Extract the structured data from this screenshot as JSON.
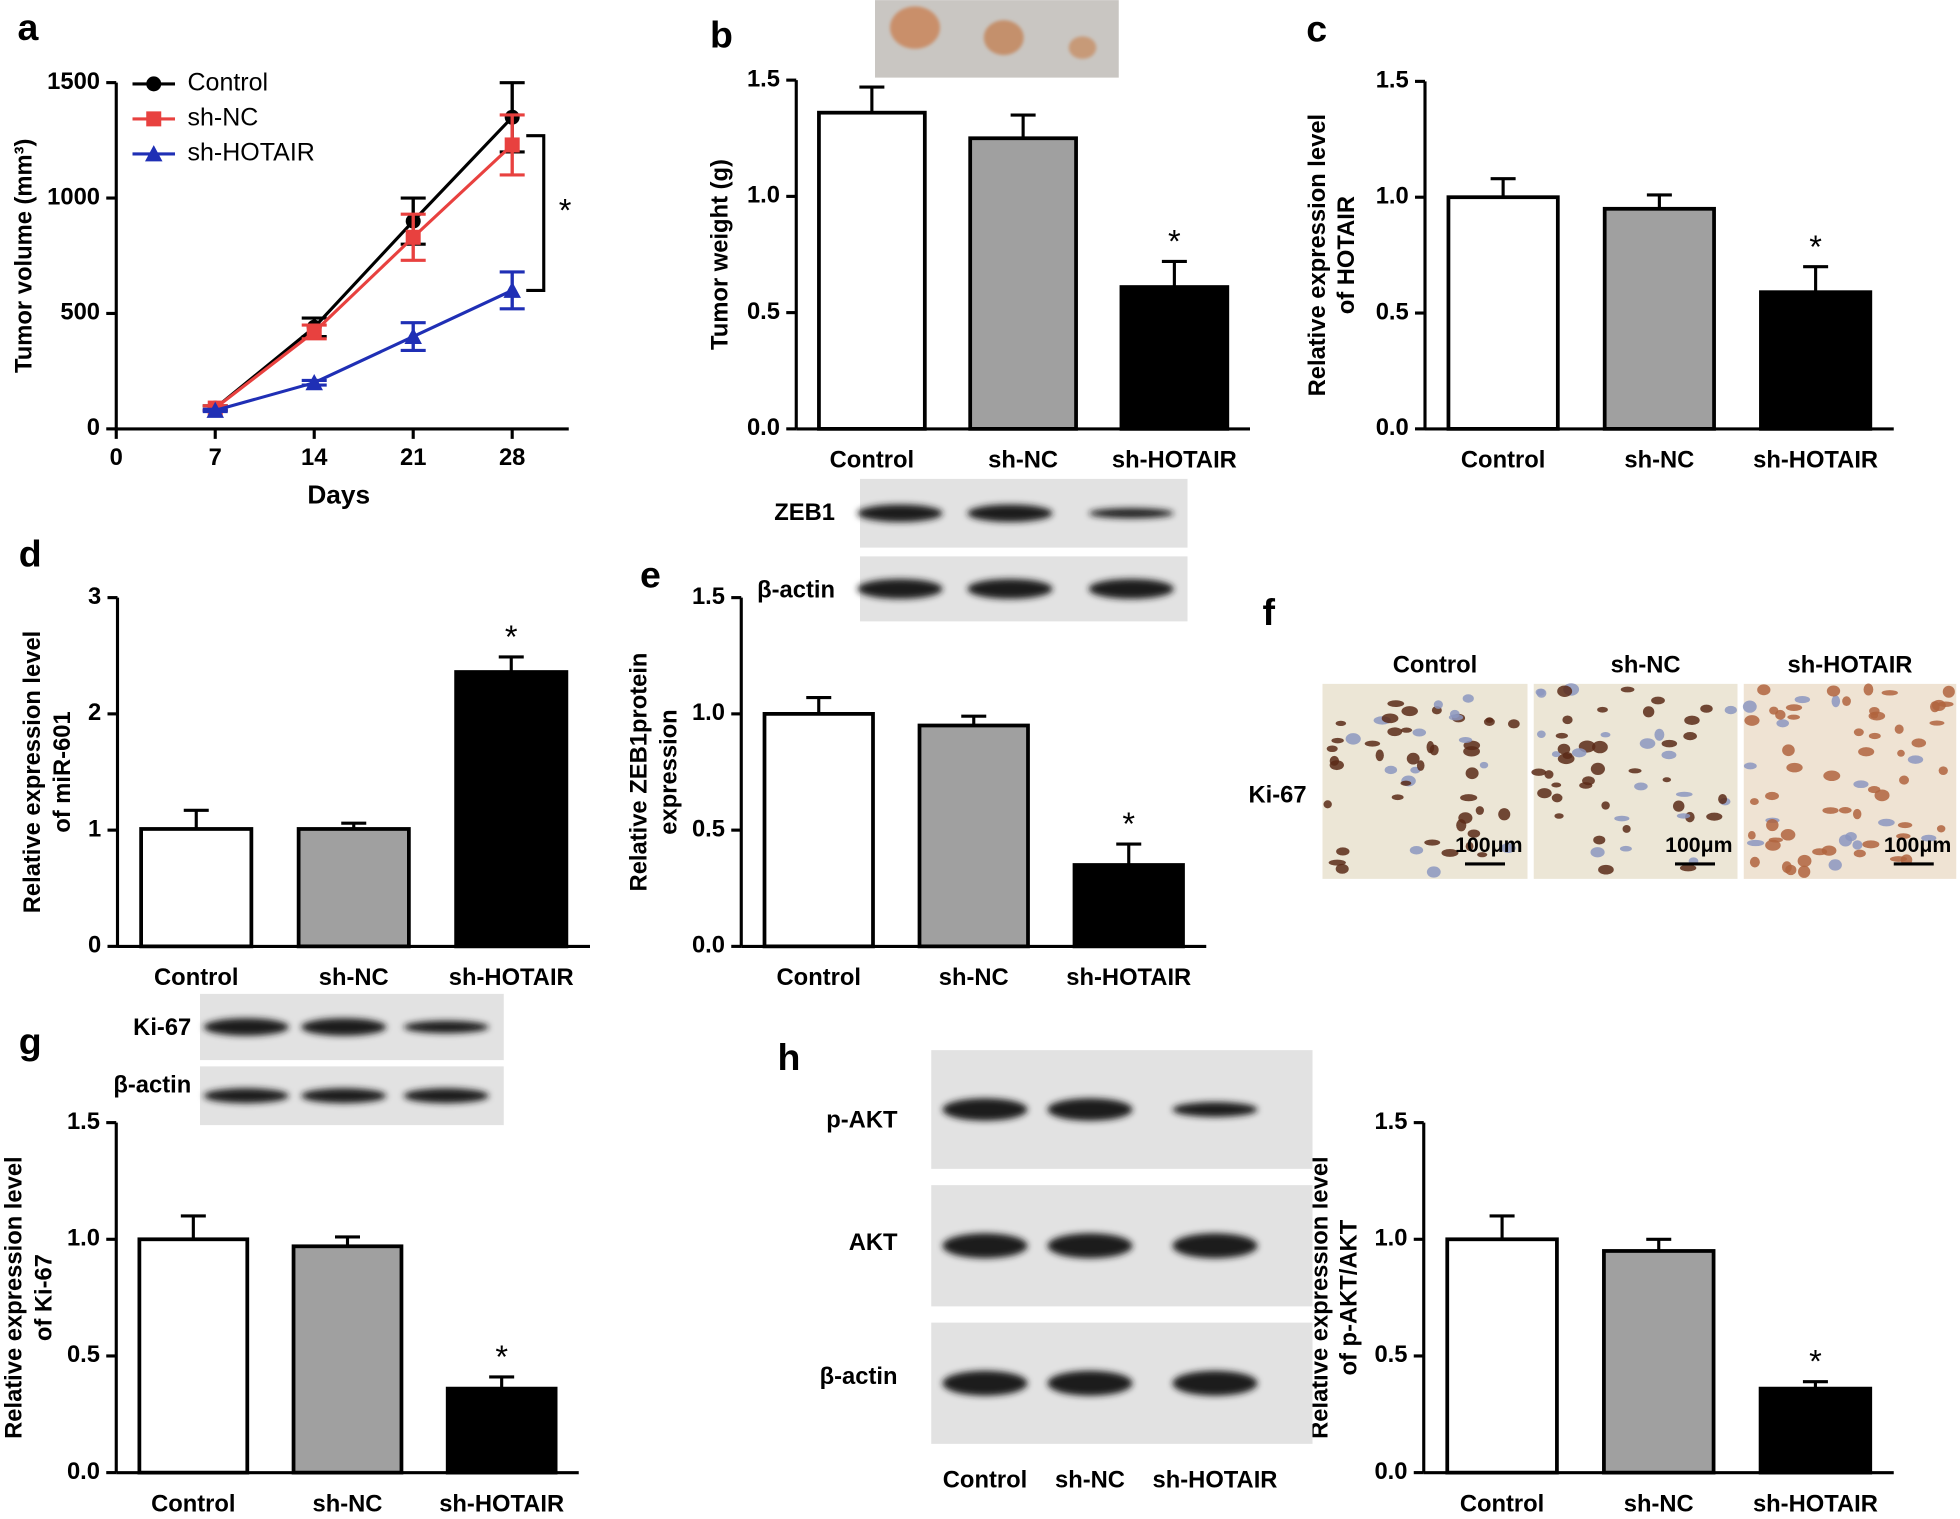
{
  "chart_data": [
    {
      "type": "line",
      "panel_label": "a",
      "xlabel": "Days",
      "ylabel": [
        "Tumor volume (mm³)"
      ],
      "x": [
        7,
        14,
        21,
        28
      ],
      "xlim": [
        0,
        32
      ],
      "xticks": [
        0,
        7,
        14,
        21,
        28
      ],
      "ylim": [
        0,
        1500
      ],
      "yticks": [
        0,
        500,
        1000,
        1500
      ],
      "series": [
        {
          "name": "Control",
          "color": "#000000",
          "marker": "circle",
          "values": [
            90,
            440,
            900,
            1350
          ],
          "errors": [
            10,
            40,
            100,
            150
          ]
        },
        {
          "name": "sh-NC",
          "color": "#e8413f",
          "marker": "square",
          "values": [
            90,
            420,
            830,
            1230
          ],
          "errors": [
            10,
            30,
            100,
            130
          ]
        },
        {
          "name": "sh-HOTAIR",
          "color": "#1f2fb5",
          "marker": "triangle",
          "values": [
            80,
            200,
            400,
            600
          ],
          "errors": [
            5,
            10,
            60,
            80
          ]
        }
      ],
      "significance": {
        "range": [
          600,
          1270
        ],
        "label": "*"
      }
    },
    {
      "type": "bar",
      "panel_label": "b",
      "ylabel": [
        "Tumor weight (g)"
      ],
      "categories": [
        "Control",
        "sh-NC",
        "sh-HOTAIR"
      ],
      "colors": [
        "#ffffff",
        "#a0a0a0",
        "#000000"
      ],
      "values": [
        1.36,
        1.25,
        0.61
      ],
      "errors": [
        0.11,
        0.1,
        0.11
      ],
      "ylim": [
        0,
        1.5
      ],
      "yticks": [
        {
          "value": 0,
          "label": "0.0"
        },
        0.5,
        {
          "value": 1,
          "label": "1.0"
        },
        1.5
      ],
      "significance": {
        "category": "sh-HOTAIR",
        "label": "*"
      }
    },
    {
      "type": "bar",
      "panel_label": "c",
      "ylabel": [
        "Relative expression level",
        "of HOTAIR"
      ],
      "categories": [
        "Control",
        "sh-NC",
        "sh-HOTAIR"
      ],
      "colors": [
        "#ffffff",
        "#a0a0a0",
        "#000000"
      ],
      "values": [
        1.0,
        0.95,
        0.59
      ],
      "errors": [
        0.08,
        0.06,
        0.11
      ],
      "ylim": [
        0,
        1.5
      ],
      "yticks": [
        {
          "value": 0,
          "label": "0.0"
        },
        0.5,
        {
          "value": 1,
          "label": "1.0"
        },
        1.5
      ],
      "significance": {
        "category": "sh-HOTAIR",
        "label": "*"
      }
    },
    {
      "type": "bar",
      "panel_label": "d",
      "ylabel": [
        "Relative expression level",
        "of miR-601"
      ],
      "categories": [
        "Control",
        "sh-NC",
        "sh-HOTAIR"
      ],
      "colors": [
        "#ffffff",
        "#a0a0a0",
        "#000000"
      ],
      "values": [
        1.01,
        1.01,
        2.36
      ],
      "errors": [
        0.16,
        0.05,
        0.13
      ],
      "ylim": [
        0,
        3
      ],
      "yticks": [
        0,
        1,
        2,
        3
      ],
      "significance": {
        "category": "sh-HOTAIR",
        "label": "*"
      }
    },
    {
      "type": "bar",
      "panel_label": "e",
      "ylabel": [
        "Relative ZEB1protein",
        "expression"
      ],
      "categories": [
        "Control",
        "sh-NC",
        "sh-HOTAIR"
      ],
      "colors": [
        "#ffffff",
        "#a0a0a0",
        "#000000"
      ],
      "values": [
        1.0,
        0.95,
        0.35
      ],
      "errors": [
        0.07,
        0.04,
        0.09
      ],
      "ylim": [
        0,
        1.5
      ],
      "yticks": [
        {
          "value": 0,
          "label": "0.0"
        },
        0.5,
        {
          "value": 1,
          "label": "1.0"
        },
        1.5
      ],
      "significance": {
        "category": "sh-HOTAIR",
        "label": "*"
      },
      "blot": {
        "rows": [
          "ZEB1",
          "β-actin"
        ]
      }
    },
    {
      "type": "image-panel",
      "panel_label": "f",
      "columns": [
        "Control",
        "sh-NC",
        "sh-HOTAIR"
      ],
      "row_label": "Ki-67",
      "scale_bar": "100μm"
    },
    {
      "type": "bar",
      "panel_label": "g",
      "ylabel": [
        "Relative expression level",
        "of Ki-67"
      ],
      "categories": [
        "Control",
        "sh-NC",
        "sh-HOTAIR"
      ],
      "colors": [
        "#ffffff",
        "#a0a0a0",
        "#000000"
      ],
      "values": [
        1.0,
        0.97,
        0.36
      ],
      "errors": [
        0.1,
        0.04,
        0.05
      ],
      "ylim": [
        0,
        1.5
      ],
      "yticks": [
        {
          "value": 0,
          "label": "0.0"
        },
        0.5,
        {
          "value": 1,
          "label": "1.0"
        },
        1.5
      ],
      "significance": {
        "category": "sh-HOTAIR",
        "label": "*"
      },
      "blot": {
        "rows": [
          "Ki-67",
          "β-actin"
        ]
      }
    },
    {
      "type": "bar",
      "panel_label": "h",
      "ylabel": [
        "Relative expression level",
        "of p-AKT/AKT"
      ],
      "categories": [
        "Control",
        "sh-NC",
        "sh-HOTAIR"
      ],
      "colors": [
        "#ffffff",
        "#a0a0a0",
        "#000000"
      ],
      "values": [
        1.0,
        0.95,
        0.36
      ],
      "errors": [
        0.1,
        0.05,
        0.03
      ],
      "ylim": [
        0,
        1.5
      ],
      "yticks": [
        {
          "value": 0,
          "label": "0.0"
        },
        0.5,
        {
          "value": 1,
          "label": "1.0"
        },
        1.5
      ],
      "significance": {
        "category": "sh-HOTAIR",
        "label": "*"
      },
      "blot": {
        "rows": [
          "p-AKT",
          "AKT",
          "β-actin"
        ],
        "lanes": [
          "Control",
          "sh-NC",
          "sh-HOTAIR"
        ]
      }
    }
  ]
}
